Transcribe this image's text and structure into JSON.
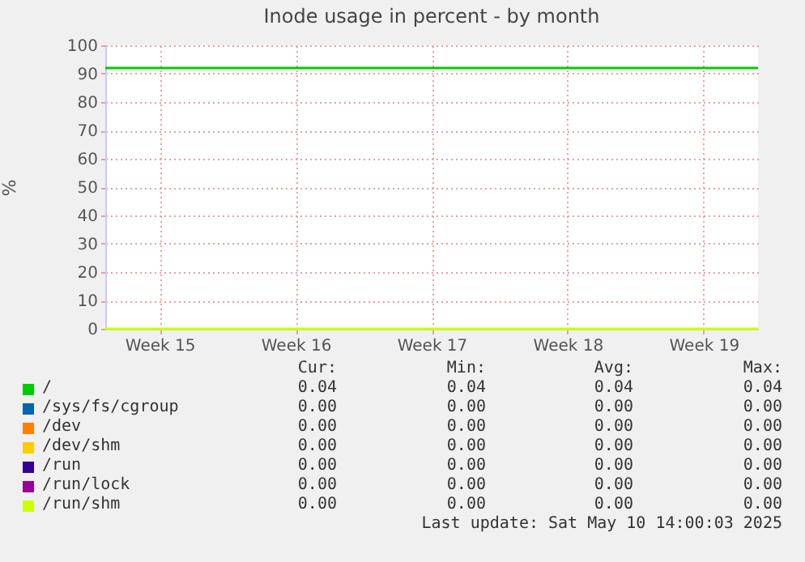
{
  "chart_data": {
    "type": "line",
    "title": "Inode usage in percent - by month",
    "ylabel": "%",
    "categories": [
      null,
      null,
      "Week 15",
      null,
      null,
      null,
      null,
      "Week 16",
      null,
      null,
      null,
      null,
      "Week 17",
      null,
      null,
      null,
      null,
      "Week 18",
      null,
      null,
      null,
      null,
      "Week 19",
      null,
      null
    ],
    "ylim": [
      0,
      100
    ],
    "yticks": [
      0,
      10,
      20,
      30,
      40,
      50,
      60,
      70,
      80,
      90,
      100
    ],
    "grid": true,
    "legend": "bottom",
    "marker": "none",
    "line_style": "solid",
    "series": [
      {
        "name": "/",
        "color": "#00cc00",
        "values": [
          92,
          92,
          92,
          92,
          92,
          92,
          92,
          92,
          92,
          92,
          92,
          92,
          92,
          92,
          92,
          92,
          92,
          92,
          92,
          92,
          92,
          92,
          92,
          92,
          92
        ]
      },
      {
        "name": "/sys/fs/cgroup",
        "color": "#0066b3",
        "values": [
          null,
          null,
          null,
          null,
          null,
          null,
          null,
          null,
          null,
          null,
          null,
          null,
          null,
          null,
          null,
          null,
          null,
          null,
          null,
          null,
          null,
          null,
          null,
          null,
          null
        ]
      },
      {
        "name": "/dev",
        "color": "#ff8000",
        "values": [
          null,
          null,
          null,
          null,
          null,
          null,
          null,
          null,
          null,
          null,
          null,
          null,
          null,
          null,
          null,
          null,
          null,
          null,
          null,
          null,
          null,
          null,
          null,
          null,
          null
        ]
      },
      {
        "name": "/dev/shm",
        "color": "#ffcc00",
        "values": [
          null,
          null,
          null,
          null,
          null,
          null,
          null,
          null,
          null,
          null,
          null,
          null,
          null,
          null,
          null,
          null,
          null,
          null,
          null,
          null,
          null,
          null,
          null,
          null,
          null
        ]
      },
      {
        "name": "/run",
        "color": "#330099",
        "values": [
          null,
          null,
          null,
          null,
          null,
          null,
          null,
          null,
          null,
          null,
          null,
          null,
          null,
          null,
          null,
          null,
          null,
          null,
          null,
          null,
          null,
          null,
          null,
          null,
          null
        ]
      },
      {
        "name": "/run/lock",
        "color": "#990099",
        "values": [
          null,
          null,
          null,
          null,
          null,
          null,
          null,
          null,
          null,
          null,
          null,
          null,
          null,
          null,
          null,
          null,
          null,
          null,
          null,
          null,
          null,
          null,
          null,
          null,
          null
        ]
      },
      {
        "name": "/run/shm",
        "color": "#ccff00",
        "values": [
          0,
          0,
          0,
          0,
          0,
          0,
          0,
          0,
          0,
          0,
          0,
          0,
          0,
          0,
          0,
          0,
          0,
          0,
          0,
          0,
          0,
          0,
          0,
          0,
          0
        ]
      }
    ],
    "annotations": [
      "Cur:",
      "Min:",
      "Avg:",
      "Max:",
      "0.04",
      "0.04",
      "0.04",
      "0.04",
      "0.00",
      "0.00",
      "0.00",
      "0.00",
      "0.00",
      "0.00",
      "0.00",
      "0.00",
      "0.00",
      "0.00",
      "0.00",
      "0.00",
      "0.00",
      "0.00",
      "0.00",
      "0.00",
      "0.00",
      "0.00",
      "0.00",
      "0.00",
      "0.00",
      "0.00",
      "0.00",
      "0.00",
      "Last update: Sat May 10 14:00:03 2025"
    ]
  }
}
